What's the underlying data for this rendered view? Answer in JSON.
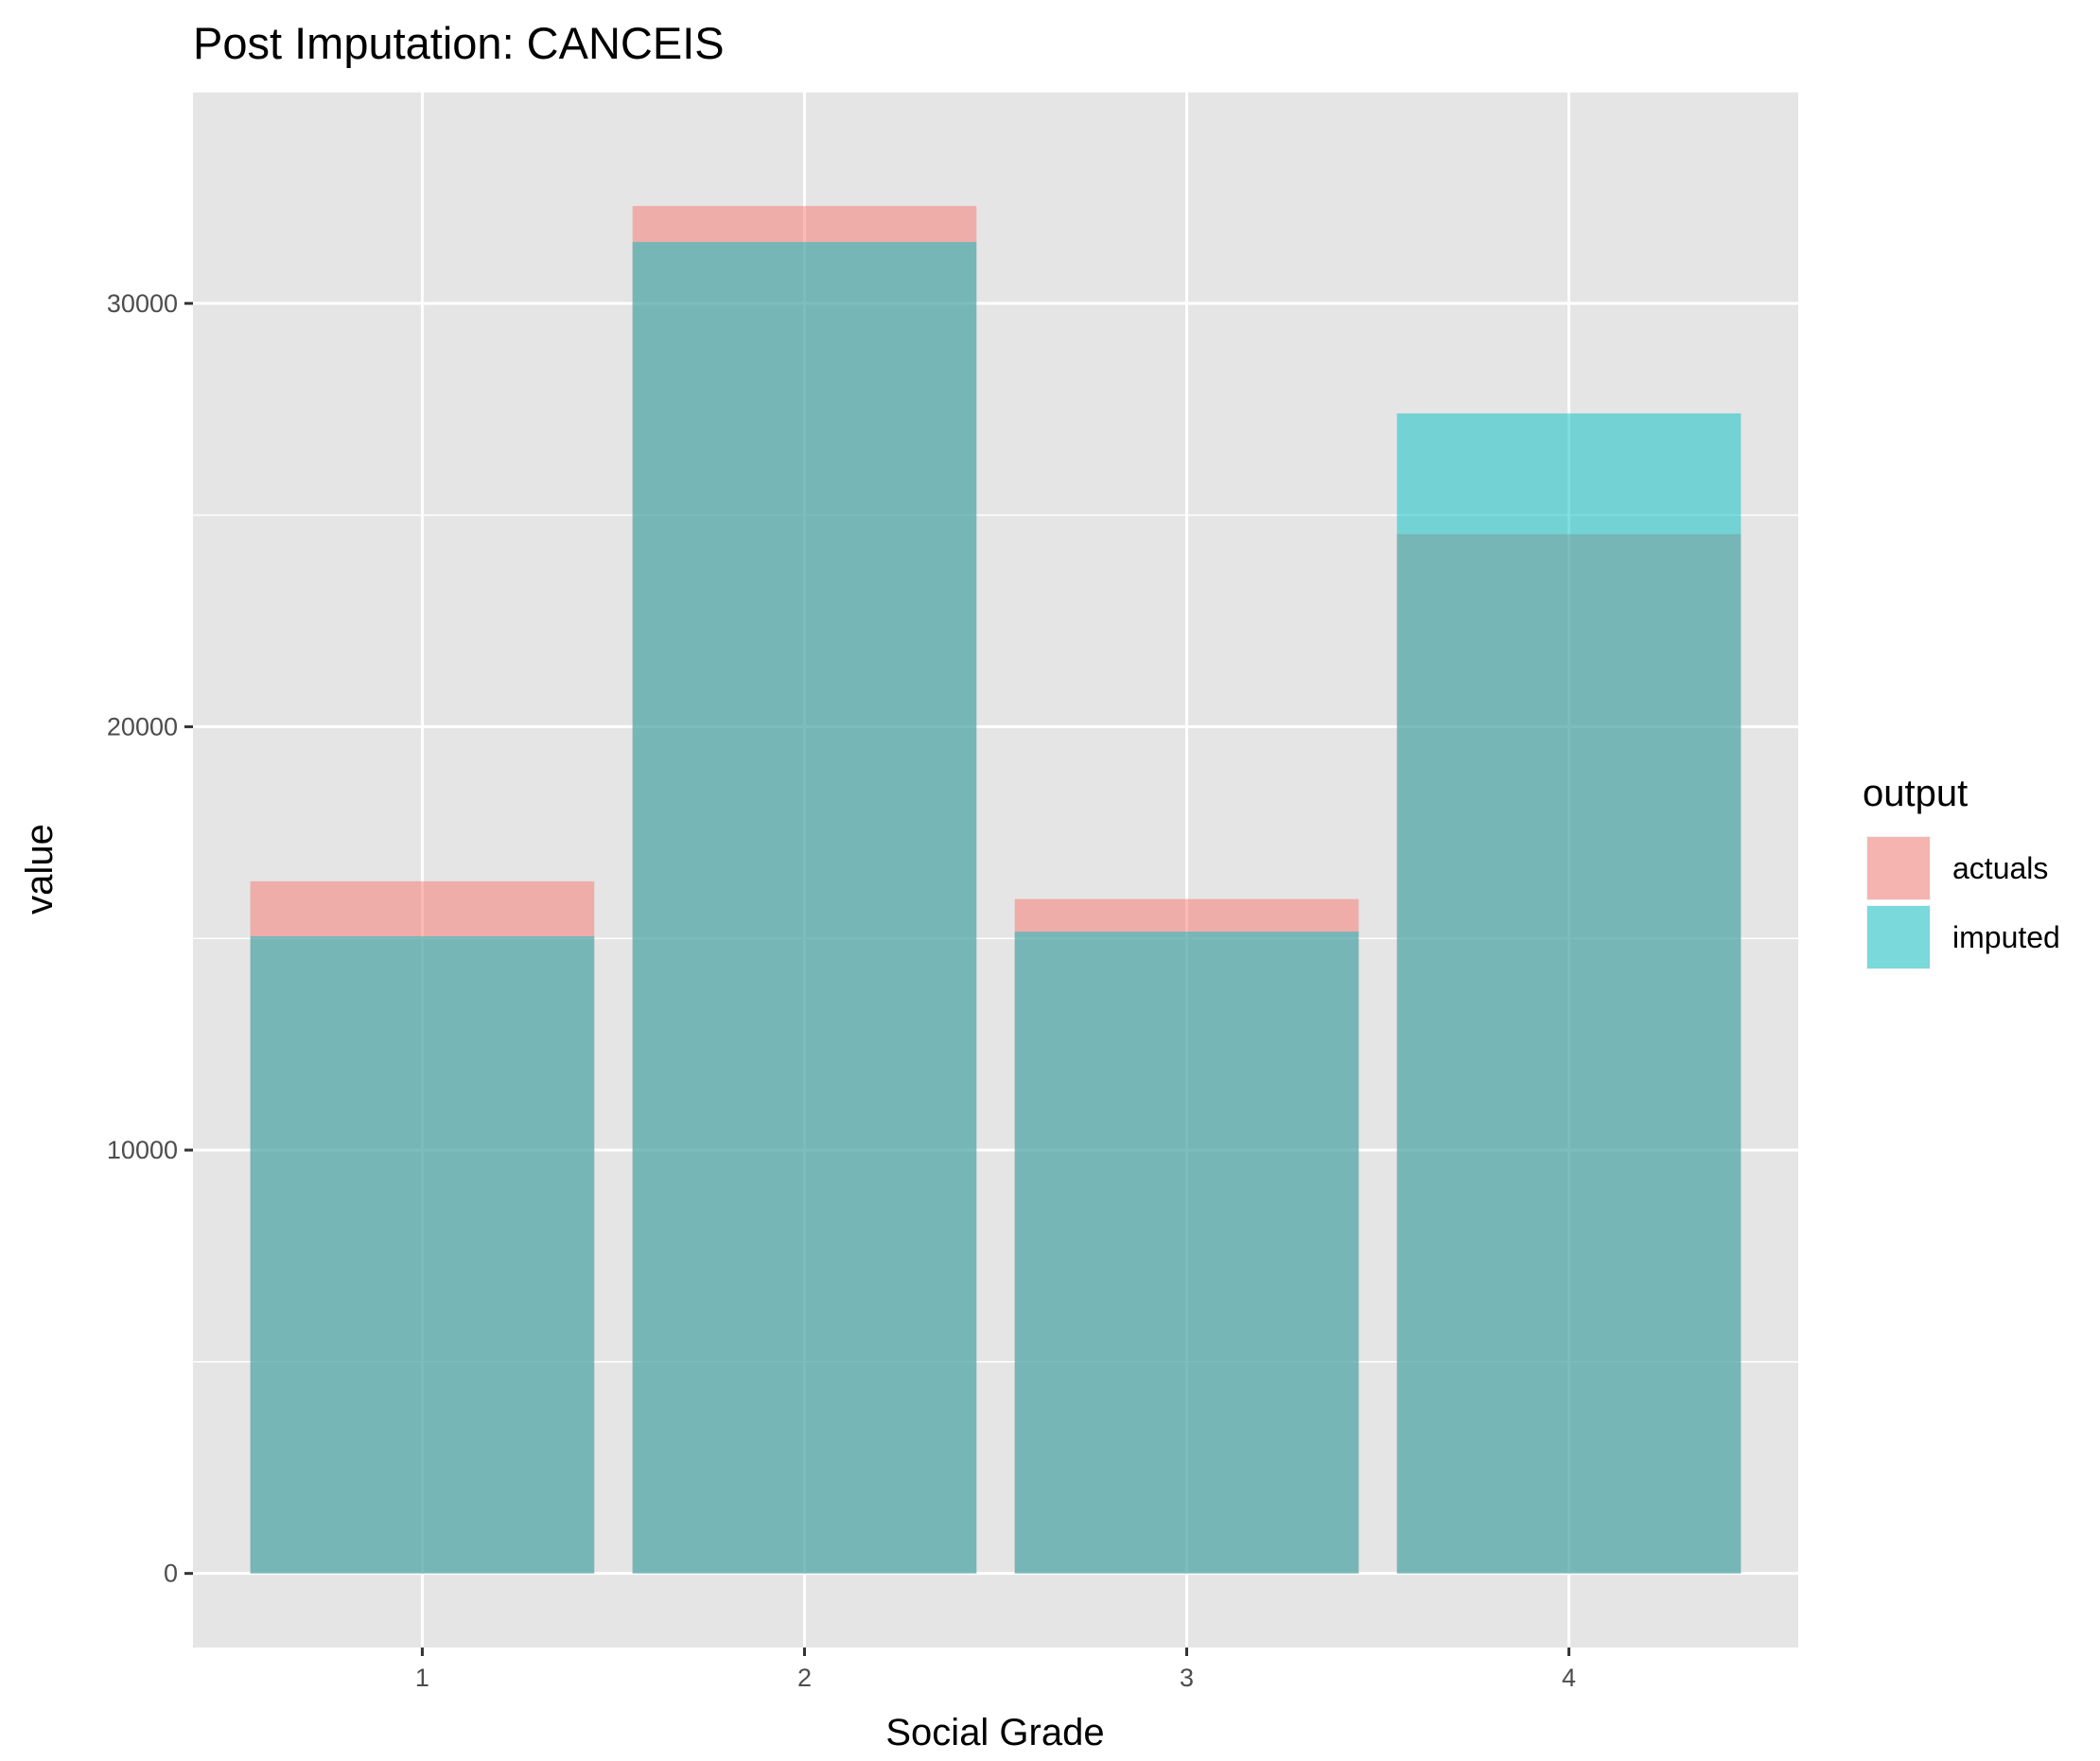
{
  "chart_data": {
    "type": "bar",
    "title": "Post Imputation: CANCEIS",
    "xlabel": "Social Grade",
    "ylabel": "value",
    "categories": [
      "1",
      "2",
      "3",
      "4"
    ],
    "series": [
      {
        "name": "actuals",
        "values": [
          16350,
          32300,
          15930,
          24550
        ],
        "color": "#F8766D"
      },
      {
        "name": "imputed",
        "values": [
          15050,
          31450,
          15160,
          27400
        ],
        "color": "#00BFC4"
      }
    ],
    "ylim": [
      -1750,
      35000
    ],
    "y_ticks": [
      0,
      10000,
      20000,
      30000
    ],
    "y_tick_labels": [
      "0",
      "10000",
      "20000",
      "30000"
    ],
    "grid": true,
    "legend": {
      "title": "output",
      "position": "right"
    },
    "colors": {
      "panel": "#E5E5E5",
      "grid": "#FFFFFF",
      "actuals": "#F8766D",
      "imputed": "#00BFC4"
    }
  }
}
